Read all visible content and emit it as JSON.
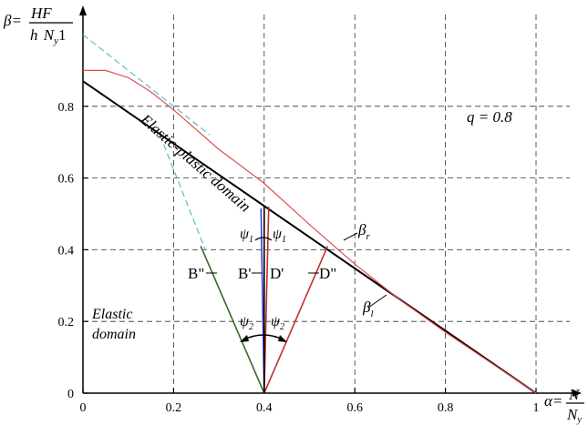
{
  "chart_data": {
    "type": "line",
    "xlim": [
      0,
      1
    ],
    "ylim": [
      0,
      1
    ],
    "x_ticks": [
      "0",
      "0.2",
      "0.4",
      "0.6",
      "0.8",
      "1"
    ],
    "y_ticks": [
      "0",
      "0.2",
      "0.4",
      "0.6",
      "0.8"
    ],
    "x_tick_values": [
      0,
      0.2,
      0.4,
      0.6,
      0.8,
      1.0
    ],
    "y_tick_values": [
      0,
      0.2,
      0.4,
      0.6,
      0.8
    ],
    "grid": true,
    "xlabel": {
      "alpha": "α=",
      "num": "N",
      "den": "N",
      "den_sub": "y"
    },
    "ylabel": {
      "beta": "β=",
      "num": "HF",
      "den_h": "h",
      "den_N": "N",
      "den_sub": "y",
      "den_1": "1"
    },
    "series": [
      {
        "name": "β_l",
        "color": "#000000",
        "points": [
          [
            0,
            0.87
          ],
          [
            1.0,
            0.0
          ]
        ]
      },
      {
        "name": "β_r",
        "color": "#e05050",
        "points": [
          [
            0,
            0.9
          ],
          [
            0.05,
            0.9
          ],
          [
            0.1,
            0.88
          ],
          [
            0.15,
            0.84
          ],
          [
            0.2,
            0.79
          ],
          [
            0.3,
            0.68
          ],
          [
            0.4,
            0.585
          ],
          [
            0.5,
            0.47
          ],
          [
            0.6,
            0.36
          ],
          [
            0.7,
            0.26
          ],
          [
            0.8,
            0.17
          ],
          [
            0.9,
            0.085
          ],
          [
            1.0,
            0.0
          ]
        ]
      },
      {
        "name": "dashed-cyan-upper",
        "color": "#5bbdc6",
        "dashed": true,
        "points": [
          [
            0,
            1.0
          ],
          [
            0.28,
            0.72
          ]
        ]
      },
      {
        "name": "dashed-cyan-lower",
        "color": "#5bbdc6",
        "dashed": true,
        "points": [
          [
            0.17,
            0.72
          ],
          [
            0.27,
            0.4
          ]
        ]
      }
    ],
    "rays": [
      {
        "id": "B2",
        "color": "#3a6b2a",
        "from": [
          0.4,
          0.0
        ],
        "to": [
          0.26,
          0.41
        ]
      },
      {
        "id": "B1",
        "color": "#3b3bd6",
        "from": [
          0.4,
          0.0
        ],
        "to": [
          0.393,
          0.515
        ]
      },
      {
        "id": "D1",
        "color": "#c03030",
        "from": [
          0.4,
          0.0
        ],
        "to": [
          0.41,
          0.52
        ]
      },
      {
        "id": "D2",
        "color": "#c03030",
        "from": [
          0.4,
          0.0
        ],
        "to": [
          0.54,
          0.41
        ]
      }
    ],
    "annotations": {
      "elastic_plastic": "Elastic-plastic domain",
      "elastic_1": "Elastic",
      "elastic_2": "domain",
      "q": "q = 0.8",
      "beta_r": "β",
      "beta_r_sub": "r",
      "beta_l": "β",
      "beta_l_sub": "l",
      "B2": "B\"",
      "B1": "B'",
      "D1": "D'",
      "D2": "D\"",
      "psi": "ψ",
      "psi1_sub": "1",
      "psi2_sub": "2"
    }
  }
}
